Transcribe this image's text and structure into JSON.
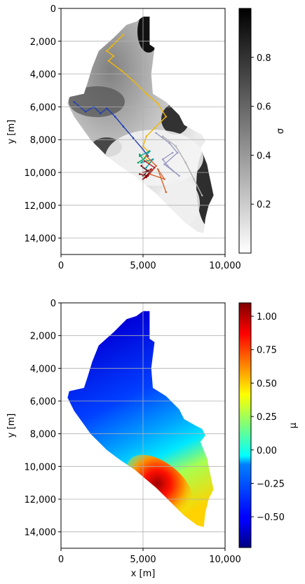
{
  "chart_data": [
    {
      "type": "heatmap",
      "xlabel": "",
      "ylabel": "y [m]",
      "xlim": [
        0,
        10000
      ],
      "ylim": [
        15000,
        0
      ],
      "x_ticks": [
        "0",
        "5,000",
        "10,000"
      ],
      "y_ticks": [
        "0",
        "2,000",
        "4,000",
        "6,000",
        "8,000",
        "10,000",
        "12,000",
        "14,000"
      ],
      "grid": true,
      "colorbar": {
        "label": "σ",
        "colormap": "gray_r",
        "range": [
          0,
          1
        ],
        "ticks": [
          "0.2",
          "0.4",
          "0.6",
          "0.8"
        ]
      },
      "paths": [
        {
          "color": "#f2b705",
          "points": [
            [
              3800,
              1600
            ],
            [
              3400,
              2000
            ],
            [
              3100,
              2300
            ],
            [
              2800,
              2600
            ],
            [
              3200,
              2900
            ],
            [
              2900,
              3200
            ],
            [
              3700,
              3800
            ],
            [
              4400,
              4400
            ],
            [
              5200,
              5200
            ],
            [
              5900,
              5800
            ],
            [
              6400,
              6600
            ],
            [
              5700,
              7300
            ],
            [
              5200,
              7800
            ],
            [
              5000,
              8400
            ],
            [
              5300,
              8700
            ],
            [
              5100,
              9100
            ],
            [
              5400,
              9400
            ]
          ]
        },
        {
          "color": "#1f3fb5",
          "points": [
            [
              800,
              5700
            ],
            [
              1500,
              6300
            ],
            [
              2000,
              6000
            ],
            [
              2400,
              6400
            ],
            [
              2800,
              6100
            ],
            [
              3300,
              6600
            ],
            [
              3800,
              7200
            ],
            [
              4400,
              7900
            ],
            [
              5000,
              8600
            ],
            [
              5300,
              9000
            ]
          ]
        },
        {
          "color": "#9b9bc4",
          "points": [
            [
              5800,
              7600
            ],
            [
              6600,
              8200
            ],
            [
              7100,
              8800
            ],
            [
              6300,
              9500
            ],
            [
              7200,
              10200
            ],
            [
              6500,
              9600
            ],
            [
              6200,
              9200
            ],
            [
              6800,
              8800
            ]
          ]
        },
        {
          "color": "#b0b0b0",
          "points": [
            [
              6200,
              7800
            ],
            [
              7000,
              8400
            ],
            [
              7600,
              9400
            ],
            [
              8100,
              10400
            ],
            [
              8600,
              11400
            ]
          ]
        },
        {
          "color": "#009ca0",
          "points": [
            [
              4800,
              9000
            ],
            [
              5400,
              8700
            ],
            [
              4900,
              9400
            ],
            [
              5600,
              9200
            ],
            [
              5200,
              9700
            ]
          ]
        },
        {
          "color": "#00a65a",
          "points": [
            [
              4800,
              8900
            ],
            [
              5000,
              9200
            ],
            [
              4700,
              9400
            ]
          ]
        },
        {
          "color": "#d9622b",
          "points": [
            [
              5200,
              9000
            ],
            [
              5800,
              9600
            ],
            [
              5400,
              10100
            ],
            [
              6300,
              10400
            ],
            [
              5900,
              9800
            ],
            [
              6400,
              11200
            ]
          ]
        },
        {
          "color": "#b22222",
          "points": [
            [
              5100,
              9300
            ],
            [
              5700,
              9700
            ],
            [
              5200,
              10300
            ],
            [
              5500,
              9800
            ],
            [
              5000,
              10000
            ]
          ]
        },
        {
          "color": "#8b0000",
          "points": [
            [
              4900,
              9600
            ],
            [
              5400,
              10000
            ],
            [
              5000,
              10400
            ],
            [
              5300,
              10200
            ],
            [
              4800,
              10100
            ]
          ]
        },
        {
          "color": "#3a1a1a",
          "points": [
            [
              5000,
              9700
            ],
            [
              5300,
              9900
            ],
            [
              5000,
              10200
            ]
          ]
        }
      ]
    },
    {
      "type": "heatmap",
      "xlabel": "x [m]",
      "ylabel": "y [m]",
      "xlim": [
        0,
        10000
      ],
      "ylim": [
        15000,
        0
      ],
      "x_ticks": [
        "0",
        "5,000",
        "10,000"
      ],
      "y_ticks": [
        "0",
        "2,000",
        "4,000",
        "6,000",
        "8,000",
        "10,000",
        "12,000",
        "14,000"
      ],
      "grid": true,
      "colorbar": {
        "label": "μ",
        "colormap": "jet",
        "range": [
          -0.73,
          1.1
        ],
        "ticks": [
          "1.00",
          "0.75",
          "0.50",
          "0.25",
          "0.00",
          "−0.25",
          "−0.50"
        ]
      }
    }
  ]
}
